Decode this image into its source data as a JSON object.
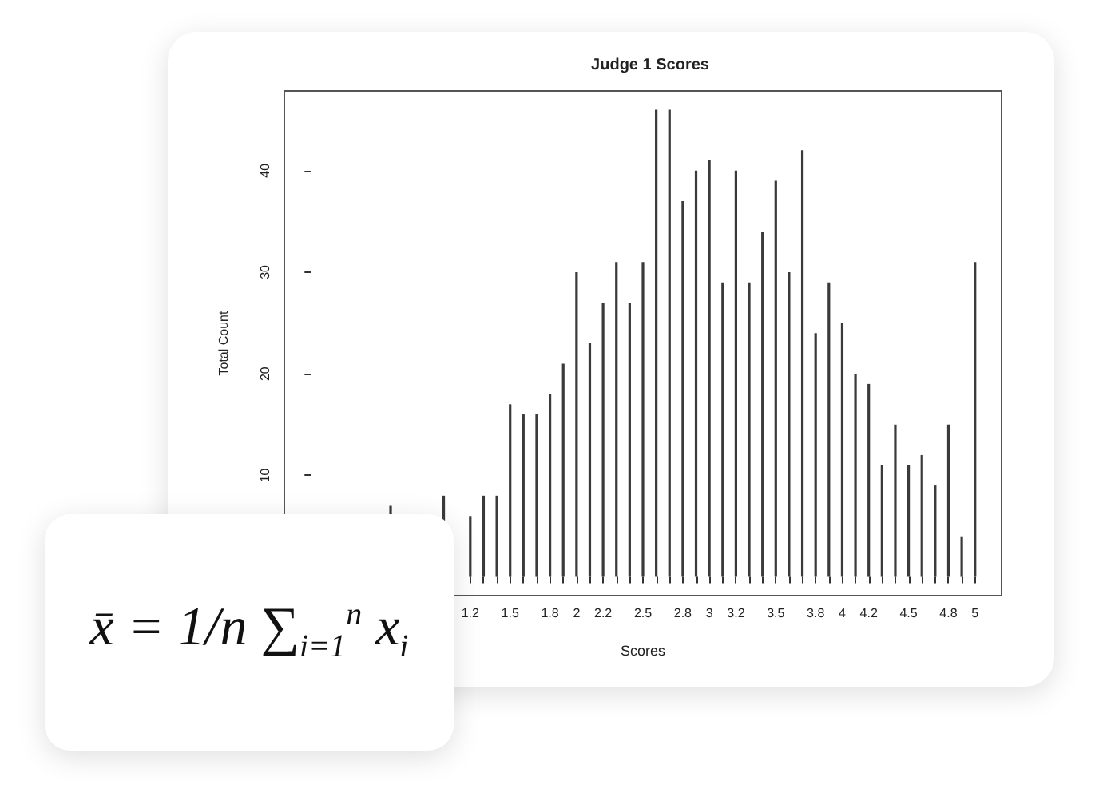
{
  "chart_data": {
    "type": "bar",
    "title": "Judge 1 Scores",
    "xlabel": "Scores",
    "ylabel": "Total Count",
    "x": [
      0.6,
      1,
      1.2,
      1.3,
      1.4,
      1.5,
      1.6,
      1.7,
      1.8,
      1.9,
      2,
      2.1,
      2.2,
      2.3,
      2.4,
      2.5,
      2.6,
      2.7,
      2.8,
      2.9,
      3,
      3.1,
      3.2,
      3.3,
      3.4,
      3.5,
      3.6,
      3.7,
      3.8,
      3.9,
      4,
      4.1,
      4.2,
      4.3,
      4.4,
      4.5,
      4.6,
      4.7,
      4.8,
      4.9,
      5
    ],
    "values": [
      7,
      8,
      6,
      8,
      8,
      17,
      16,
      16,
      18,
      21,
      30,
      23,
      27,
      31,
      27,
      31,
      46,
      46,
      37,
      40,
      41,
      29,
      40,
      29,
      34,
      39,
      30,
      42,
      24,
      29,
      25,
      20,
      19,
      11,
      15,
      11,
      12,
      9,
      15,
      4,
      31
    ],
    "color": "#3a3a3a",
    "xlim": [
      -0.2,
      5.2
    ],
    "xticks": [
      {
        "value": 1.2,
        "label": "1.2"
      },
      {
        "value": 1.3,
        "label": null
      },
      {
        "value": 1.4,
        "label": null
      },
      {
        "value": 1.5,
        "label": "1.5"
      },
      {
        "value": 1.6,
        "label": null
      },
      {
        "value": 1.7,
        "label": null
      },
      {
        "value": 1.8,
        "label": "1.8"
      },
      {
        "value": 1.9,
        "label": null
      },
      {
        "value": 2,
        "label": "2"
      },
      {
        "value": 2.1,
        "label": null
      },
      {
        "value": 2.2,
        "label": "2.2"
      },
      {
        "value": 2.3,
        "label": null
      },
      {
        "value": 2.4,
        "label": null
      },
      {
        "value": 2.5,
        "label": "2.5"
      },
      {
        "value": 2.6,
        "label": null
      },
      {
        "value": 2.7,
        "label": null
      },
      {
        "value": 2.8,
        "label": "2.8"
      },
      {
        "value": 2.9,
        "label": null
      },
      {
        "value": 3,
        "label": "3"
      },
      {
        "value": 3.1,
        "label": null
      },
      {
        "value": 3.2,
        "label": "3.2"
      },
      {
        "value": 3.3,
        "label": null
      },
      {
        "value": 3.4,
        "label": null
      },
      {
        "value": 3.5,
        "label": "3.5"
      },
      {
        "value": 3.6,
        "label": null
      },
      {
        "value": 3.7,
        "label": null
      },
      {
        "value": 3.8,
        "label": "3.8"
      },
      {
        "value": 3.9,
        "label": null
      },
      {
        "value": 4,
        "label": "4"
      },
      {
        "value": 4.1,
        "label": null
      },
      {
        "value": 4.2,
        "label": "4.2"
      },
      {
        "value": 4.3,
        "label": null
      },
      {
        "value": 4.4,
        "label": null
      },
      {
        "value": 4.5,
        "label": "4.5"
      },
      {
        "value": 4.6,
        "label": null
      },
      {
        "value": 4.7,
        "label": null
      },
      {
        "value": 4.8,
        "label": "4.8"
      },
      {
        "value": 4.9,
        "label": null
      },
      {
        "value": 5,
        "label": "5"
      }
    ],
    "ylim": [
      -1.84,
      47.84
    ],
    "yticks": [
      10,
      20,
      30,
      40
    ],
    "annotations": [
      "x̄ = 1/n ∑$_{i=1}$$^{n}$ x$_{i}$"
    ]
  }
}
